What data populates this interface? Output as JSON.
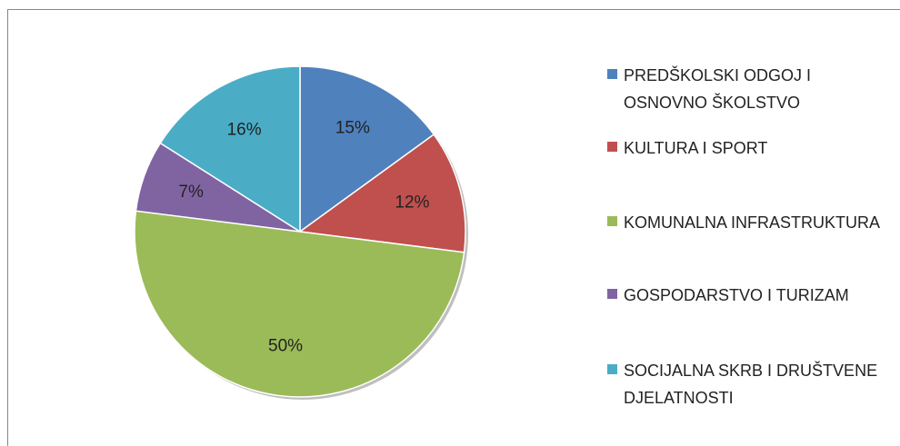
{
  "chart_data": {
    "type": "pie",
    "categories": [
      "PREDŠKOLSKI ODGOJ I OSNOVNO ŠKOLSTVO",
      "KULTURA I SPORT",
      "KOMUNALNA INFRASTRUKTURA",
      "GOSPODARSTVO I TURIZAM",
      "SOCIJALNA SKRB I DRUŠTVENE DJELATNOSTI"
    ],
    "values": [
      15,
      12,
      50,
      7,
      16
    ],
    "value_labels": [
      "15%",
      "12%",
      "50%",
      "7%",
      "16%"
    ],
    "colors": [
      "#4f81bd",
      "#c0504d",
      "#9bbb59",
      "#8064a2",
      "#4bacc6"
    ],
    "legend": "right"
  }
}
